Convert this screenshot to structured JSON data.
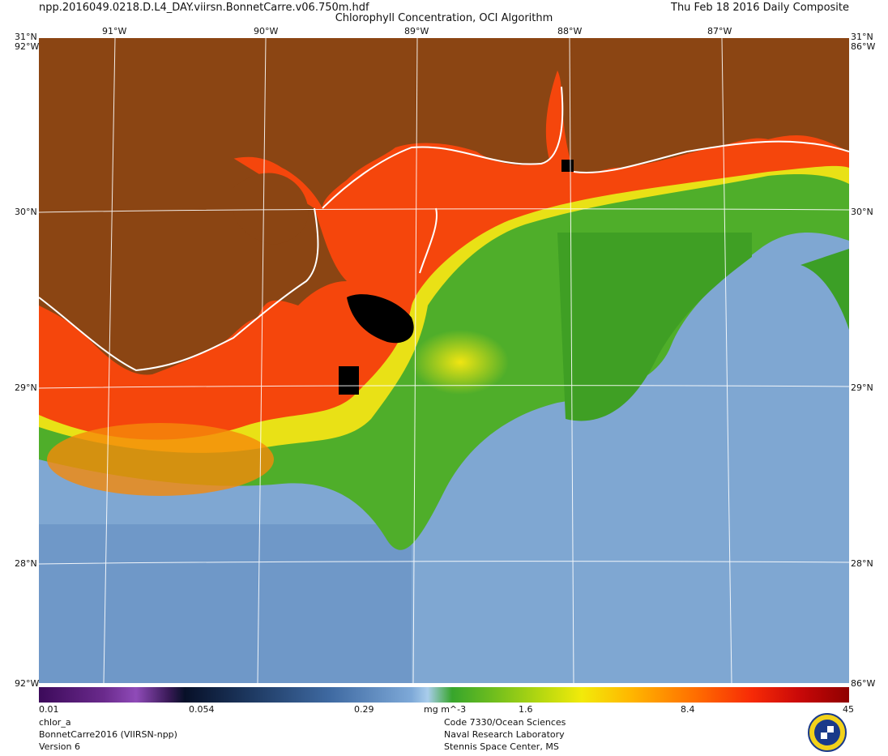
{
  "header": {
    "file_name": "npp.2016049.0218.D.L4_DAY.viirsn.BonnetCarre.v06.750m.hdf",
    "title": "Chlorophyll Concentration, OCI Algorithm",
    "date": "Thu Feb 18 2016 Daily Composite"
  },
  "map": {
    "lat_labels": [
      "31°N",
      "30°N",
      "29°N",
      "28°N"
    ],
    "lon_labels": [
      "91°W",
      "90°W",
      "89°W",
      "88°W",
      "87°W"
    ],
    "corner_labels": {
      "top_left": "31°N",
      "top_left_under": "92°W",
      "top_right": "31°N",
      "top_right_under": "86°W",
      "bottom_left": "92°W",
      "bottom_right": "86°W"
    },
    "colors": {
      "land": "#8b4513",
      "coast": "#ffffff",
      "low_chl": "#7fa7d2",
      "mid_chl": "#4fae2a",
      "high_chl": "#f5340a",
      "no_data": "#000000"
    }
  },
  "colorbar": {
    "tick_labels": [
      "0.01",
      "0.054",
      "0.29",
      "1.6",
      "8.4",
      "45"
    ],
    "units": "mg m^-3"
  },
  "footer": {
    "left": [
      "chlor_a",
      "BonnetCarre2016 (VIIRSN-npp)",
      "Version 6"
    ],
    "center": [
      "Code 7330/Ocean Sciences",
      "Naval Research Laboratory",
      "Stennis Space Center, MS"
    ]
  },
  "logo": {
    "icon": "nrl-seal-icon"
  }
}
